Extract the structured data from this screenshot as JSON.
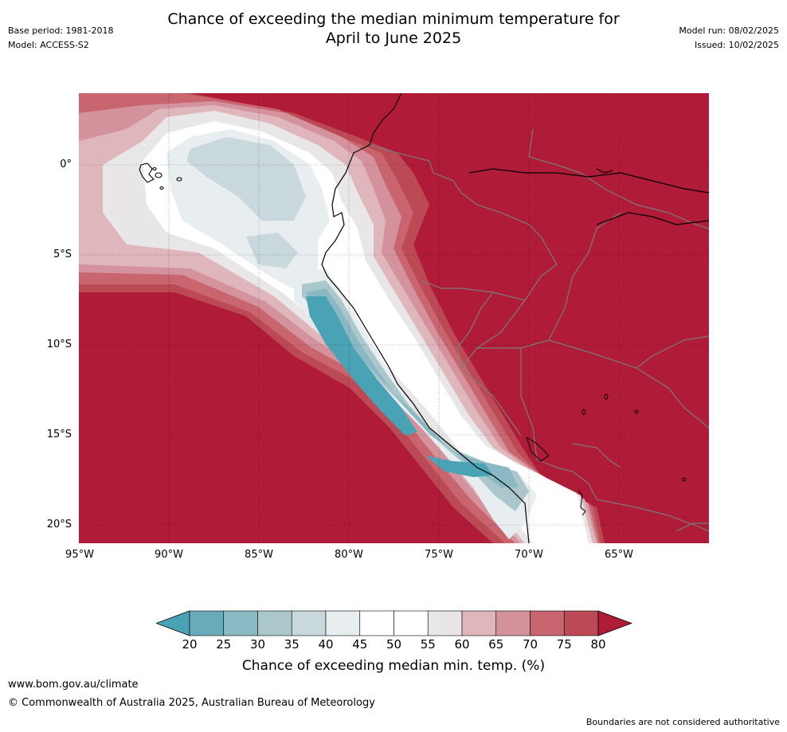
{
  "header": {
    "base_period": "Base period: 1981-2018",
    "model": "Model: ACCESS-S2",
    "title_line1": "Chance of exceeding the median minimum temperature for",
    "title_line2": "April to June 2025",
    "model_run": "Model run: 08/02/2025",
    "issued": "Issued: 10/02/2025"
  },
  "map": {
    "lat_labels": [
      "0°",
      "5°S",
      "10°S",
      "15°S",
      "20°S"
    ],
    "lon_labels": [
      "95°W",
      "90°W",
      "85°W",
      "80°W",
      "75°W",
      "70°W",
      "65°W"
    ],
    "colors": {
      "ocean_high": "#b01c38",
      "land_high": "#b01c38",
      "coast": "#000000",
      "borders": "#7a7a7a"
    }
  },
  "colorbar": {
    "ticks": [
      "20",
      "25",
      "30",
      "35",
      "40",
      "45",
      "50",
      "55",
      "60",
      "65",
      "70",
      "75",
      "80"
    ],
    "colors": [
      "#4aa3b5",
      "#6aabb9",
      "#8ab8c3",
      "#abc7cc",
      "#c9d8dc",
      "#e8eef0",
      "#ffffff",
      "#ffffff",
      "#e9e6e7",
      "#deb6bc",
      "#d4939c",
      "#c8656f",
      "#bc4a55",
      "#b01c38"
    ],
    "label": "Chance of exceeding median min. temp. (%)"
  },
  "footer": {
    "url": "www.bom.gov.au/climate",
    "copyright": "© Commonwealth of Australia 2025, Australian Bureau of Meteorology",
    "disclaimer": "Boundaries are not considered authoritative"
  }
}
